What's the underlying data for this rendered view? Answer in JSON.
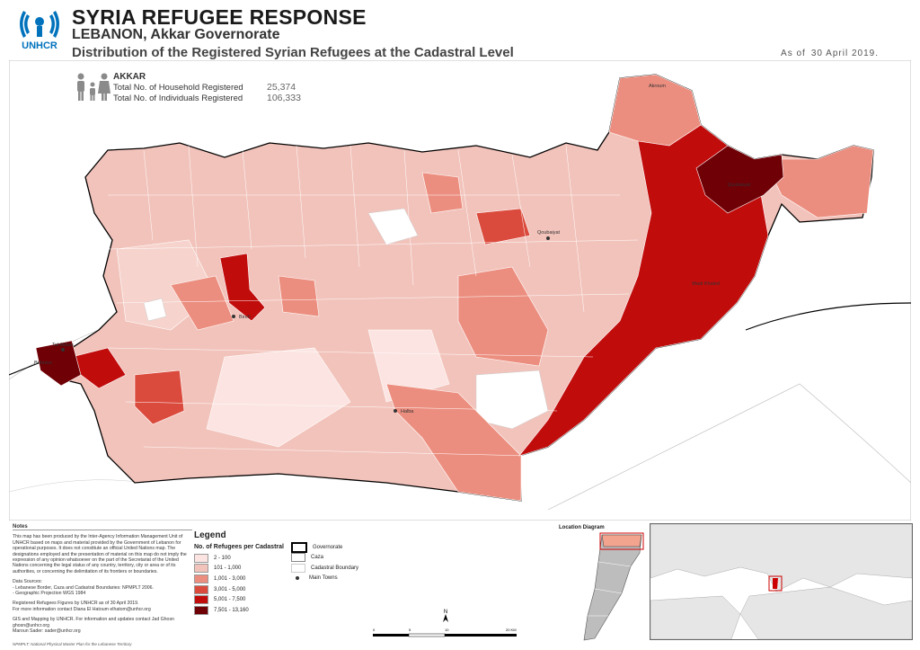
{
  "header": {
    "title": "SYRIA REFUGEE RESPONSE",
    "subtitle": "LEBANON, Akkar Governorate",
    "description": "Distribution of the Registered Syrian Refugees at the Cadastral Level",
    "as_of_label": "As of",
    "as_of_date": "30 April 2019."
  },
  "logo": {
    "org": "UNHCR"
  },
  "stats": {
    "region": "AKKAR",
    "household_label": "Total No. of Household Registered",
    "household_value": "25,374",
    "individuals_label": "Total No. of Individuals Registered",
    "individuals_value": "106,333",
    "icon": "family-icon"
  },
  "notes": {
    "title": "Notes",
    "paragraphs": [
      "This map has been produced by the Inter-Agency Information Management Unit of UNHCR based on maps and material provided by the Government of Lebanon for operational purposes. It does not constitute an official United Nations map. The designations employed and the presentation of material on this map do not imply the expression of any opinion whatsoever on the part of the Secretariat of the United Nations concerning the legal status of any country, territory, city or area or of its authorities, or concerning the delimitation of its frontiers or boundaries.",
      "Data Sources:\n- Lebanese Border, Caza and Cadastral Boundaries: NPMPLT 2006.\n- Geographic Projection WGS 1984",
      "Registered Refugees Figures by UNHCR as of 30 April 2019.\nFor more information contact Diana El Hatoum elhatom@unhcr.org",
      "GIS and Mapping by UNHCR. For information and updates contact Jad Ghosn ghosn@unhcr.org\nMaroun Sader: sader@unhcr.org"
    ]
  },
  "legend": {
    "title": "Legend",
    "subtitle": "No. of Refugees per Cadastral",
    "classes": [
      {
        "label": "2 - 100",
        "color": "#fbe4e1"
      },
      {
        "label": "101 - 1,000",
        "color": "#f2c3bb"
      },
      {
        "label": "1,001 - 3,000",
        "color": "#ec8e7f"
      },
      {
        "label": "3,001 - 5,000",
        "color": "#db4b3d"
      },
      {
        "label": "5,001 - 7,500",
        "color": "#c10c0c"
      },
      {
        "label": "7,501 - 13,160",
        "color": "#6e0006"
      }
    ],
    "lines": [
      {
        "label": "Governorate",
        "color": "#000000"
      },
      {
        "label": "Caza",
        "color": "#888888"
      },
      {
        "label": "Cadastral Boundary",
        "color": "#cccccc"
      },
      {
        "label": "Main Towns",
        "color": "#333333"
      }
    ]
  },
  "location_diagram": {
    "title": "Location Diagram"
  },
  "scale": {
    "ticks": [
      "0",
      "5",
      "10",
      "20 KM"
    ]
  },
  "north": "N",
  "footer": "NPMPLT: National Physical Master Plan for the Lebanese Territory",
  "map": {
    "towns": [
      "Halba",
      "Qoubaiyat",
      "Bireh",
      "Tal Abbas"
    ],
    "region_labels": [
      "Akroum",
      "Qoubaiyat",
      "Bebnine",
      "Wadi Khaled"
    ]
  }
}
